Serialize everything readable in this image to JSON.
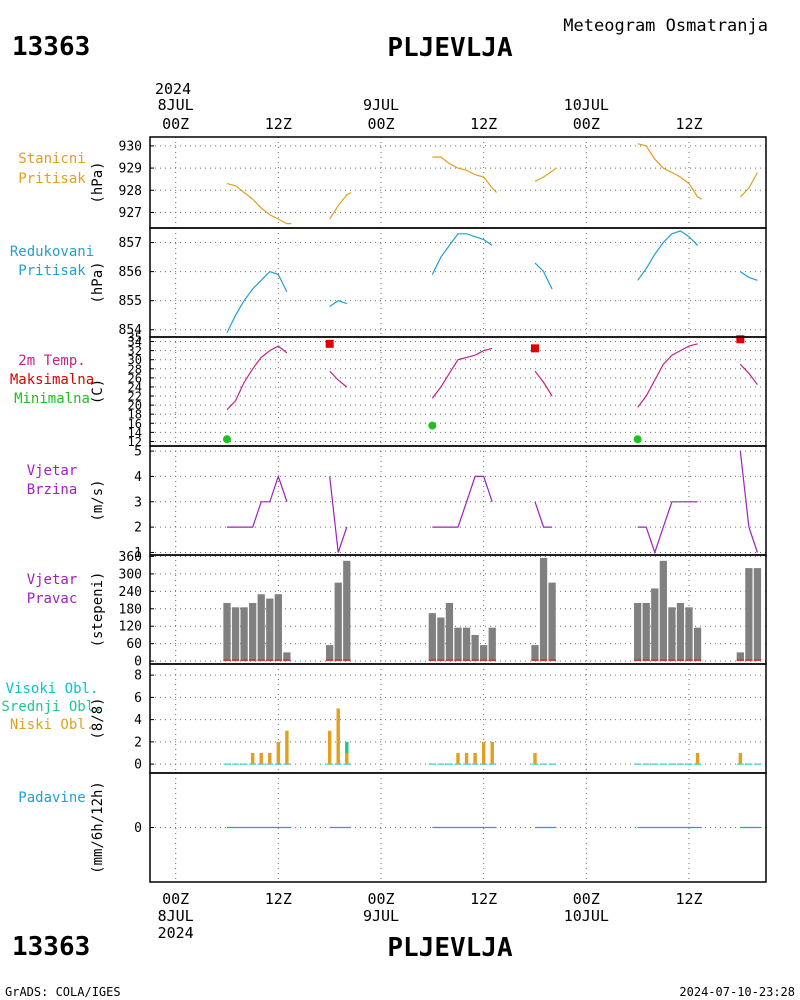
{
  "header": {
    "station_id": "13363",
    "station_name": "PLJEVLJA",
    "subtitle": "Meteogram  Osmatranja",
    "year": "2024"
  },
  "footer": {
    "credit": "GrADS: COLA/IGES",
    "timestamp": "2024-07-10-23:28"
  },
  "time_axis": {
    "top_row1": [
      "8JUL",
      "9JUL",
      "10JUL"
    ],
    "top_row2": [
      "00Z",
      "12Z",
      "00Z",
      "12Z",
      "00Z",
      "12Z"
    ],
    "bottom_row1": [
      "00Z",
      "12Z",
      "00Z",
      "12Z",
      "00Z",
      "12Z"
    ],
    "bottom_row2": [
      "8JUL",
      "9JUL",
      "10JUL"
    ],
    "bottom_row3": "2024"
  },
  "colors": {
    "pressure": "#e0a020",
    "reduced_pressure": "#20a0d0",
    "temperature": "#c8208a",
    "max_marker": "#e00000",
    "min_marker": "#20c020",
    "wind": "#a020c0",
    "wind_dir_bar": "#808080",
    "wind_dir_base": "#e03030",
    "high_cloud": "#00c8c8",
    "mid_cloud": "#20c890",
    "low_cloud": "#e0a020",
    "precip": "#20a0d0"
  },
  "panels": {
    "station_pressure": {
      "label1": "Stanicni",
      "label2": "Pritisak",
      "unit": "(hPa)",
      "ticks": [
        "927",
        "928",
        "929",
        "930"
      ]
    },
    "reduced_pressure": {
      "label1": "Redukovani",
      "label2": "Pritisak",
      "unit": "(hPa)",
      "ticks": [
        "854",
        "855",
        "856",
        "857"
      ]
    },
    "temperature": {
      "label1": "2m Temp.",
      "label2": "Maksimalna",
      "label3": "Minimalna",
      "unit": "(C)",
      "ticks": [
        "12",
        "14",
        "16",
        "18",
        "20",
        "22",
        "24",
        "26",
        "28",
        "30",
        "32",
        "34",
        "35"
      ]
    },
    "wind_speed": {
      "label1": "Vjetar",
      "label2": "Brzina",
      "unit": "(m/s)",
      "ticks": [
        "1",
        "2",
        "3",
        "4",
        "5"
      ]
    },
    "wind_direction": {
      "label1": "Vjetar",
      "label2": "Pravac",
      "unit": "(stepeni)",
      "ticks": [
        "0",
        "60",
        "120",
        "180",
        "240",
        "300",
        "360"
      ]
    },
    "clouds": {
      "label1": "Visoki Obl.",
      "label2": "Srednji Obl.",
      "label3": "Niski Obl.",
      "unit": "(8/8)",
      "ticks": [
        "0",
        "2",
        "4",
        "6",
        "8"
      ]
    },
    "precipitation": {
      "label1": "Padavine",
      "unit": "(mm/6h/12h)",
      "ticks": [
        "0"
      ]
    }
  },
  "chart_data": {
    "type": "line",
    "x_unit": "hours since 2024-07-08 00Z",
    "xlim": [
      -3,
      69
    ],
    "series_station_pressure": {
      "ylim": [
        926.3,
        930.4
      ],
      "segments": [
        [
          [
            6,
            928.3
          ],
          [
            7,
            928.2
          ],
          [
            8,
            927.9
          ],
          [
            9,
            927.6
          ],
          [
            10,
            927.2
          ],
          [
            11,
            926.9
          ],
          [
            12,
            926.7
          ],
          [
            13,
            926.5
          ],
          [
            13.5,
            926.5
          ]
        ],
        [
          [
            18,
            926.7
          ],
          [
            19,
            927.3
          ],
          [
            20,
            927.8
          ],
          [
            20.5,
            927.9
          ]
        ],
        [
          [
            30,
            929.5
          ],
          [
            31,
            929.5
          ],
          [
            32,
            929.2
          ],
          [
            33,
            929.0
          ],
          [
            34,
            928.9
          ],
          [
            35,
            928.7
          ],
          [
            36,
            928.6
          ],
          [
            37,
            928.1
          ],
          [
            37.5,
            927.9
          ]
        ],
        [
          [
            42,
            928.4
          ],
          [
            43,
            928.6
          ],
          [
            44.5,
            929.0
          ]
        ],
        [
          [
            54,
            930.1
          ],
          [
            55,
            930.0
          ],
          [
            56,
            929.4
          ],
          [
            57,
            929.0
          ],
          [
            58,
            928.8
          ],
          [
            59,
            928.6
          ],
          [
            60,
            928.3
          ],
          [
            61,
            927.7
          ],
          [
            61.5,
            927.6
          ]
        ],
        [
          [
            66,
            927.7
          ],
          [
            67,
            928.1
          ],
          [
            68,
            928.8
          ]
        ]
      ]
    },
    "series_reduced_pressure": {
      "ylim": [
        853.75,
        857.5
      ],
      "segments": [
        [
          [
            6,
            853.9
          ],
          [
            7,
            854.5
          ],
          [
            8,
            855.0
          ],
          [
            9,
            855.4
          ],
          [
            10,
            855.7
          ],
          [
            11,
            856.0
          ],
          [
            12,
            855.9
          ],
          [
            13,
            855.3
          ]
        ],
        [
          [
            18,
            854.8
          ],
          [
            19,
            855.0
          ],
          [
            20,
            854.9
          ]
        ],
        [
          [
            30,
            855.9
          ],
          [
            31,
            856.5
          ],
          [
            32,
            856.9
          ],
          [
            33,
            857.3
          ],
          [
            34,
            857.3
          ],
          [
            35,
            857.2
          ],
          [
            36,
            857.1
          ],
          [
            37,
            856.9
          ]
        ],
        [
          [
            42,
            856.3
          ],
          [
            43,
            856.0
          ],
          [
            44,
            855.4
          ]
        ],
        [
          [
            54,
            855.7
          ],
          [
            55,
            856.1
          ],
          [
            56,
            856.6
          ],
          [
            57,
            857.0
          ],
          [
            58,
            857.3
          ],
          [
            59,
            857.4
          ],
          [
            60,
            857.2
          ],
          [
            61,
            856.9
          ]
        ],
        [
          [
            66,
            856.0
          ],
          [
            67,
            855.8
          ],
          [
            68,
            855.7
          ]
        ]
      ]
    },
    "series_temperature": {
      "ylim": [
        11,
        35
      ],
      "segments": [
        [
          [
            6,
            19
          ],
          [
            7,
            21
          ],
          [
            8,
            25
          ],
          [
            9,
            28
          ],
          [
            10,
            30.5
          ],
          [
            11,
            32
          ],
          [
            12,
            33
          ],
          [
            13,
            31.5
          ]
        ],
        [
          [
            18,
            27.5
          ],
          [
            19,
            25.5
          ],
          [
            20,
            24
          ]
        ],
        [
          [
            30,
            21.5
          ],
          [
            31,
            24
          ],
          [
            32,
            27
          ],
          [
            33,
            30
          ],
          [
            34,
            30.5
          ],
          [
            35,
            31
          ],
          [
            36,
            32
          ],
          [
            37,
            32.5
          ]
        ],
        [
          [
            42,
            27.5
          ],
          [
            43,
            25
          ],
          [
            44,
            22
          ]
        ],
        [
          [
            54,
            19.5
          ],
          [
            55,
            22
          ],
          [
            56,
            25.5
          ],
          [
            57,
            29
          ],
          [
            58,
            31
          ],
          [
            59,
            32
          ],
          [
            60,
            33
          ],
          [
            61,
            33.5
          ]
        ],
        [
          [
            66,
            29
          ],
          [
            67,
            27
          ],
          [
            68,
            24.5
          ]
        ]
      ],
      "max_points": [
        [
          18,
          33.5
        ],
        [
          42,
          32.5
        ],
        [
          66,
          34.5
        ]
      ],
      "min_points": [
        [
          6,
          12.5
        ],
        [
          30,
          15.5
        ],
        [
          54,
          12.5
        ]
      ]
    },
    "series_wind_speed": {
      "ylim": [
        0.9,
        5.2
      ],
      "segments": [
        [
          [
            6,
            2
          ],
          [
            7,
            2
          ],
          [
            8,
            2
          ],
          [
            9,
            2
          ],
          [
            10,
            3
          ],
          [
            11,
            3
          ],
          [
            12,
            4
          ],
          [
            13,
            3
          ]
        ],
        [
          [
            18,
            4
          ],
          [
            19,
            1
          ],
          [
            20,
            2
          ]
        ],
        [
          [
            30,
            2
          ],
          [
            31,
            2
          ],
          [
            32,
            2
          ],
          [
            33,
            2
          ],
          [
            34,
            3
          ],
          [
            35,
            4
          ],
          [
            36,
            4
          ],
          [
            37,
            3
          ]
        ],
        [
          [
            42,
            3
          ],
          [
            43,
            2
          ],
          [
            44,
            2
          ]
        ],
        [
          [
            54,
            2
          ],
          [
            55,
            2
          ],
          [
            56,
            1
          ],
          [
            57,
            2
          ],
          [
            58,
            3
          ],
          [
            59,
            3
          ],
          [
            60,
            3
          ],
          [
            61,
            3
          ]
        ],
        [
          [
            66,
            5
          ],
          [
            67,
            2
          ],
          [
            68,
            1
          ]
        ]
      ]
    },
    "series_wind_direction": {
      "ylim": [
        -10,
        365
      ],
      "bars": [
        [
          6,
          200
        ],
        [
          7,
          185
        ],
        [
          8,
          185
        ],
        [
          9,
          200
        ],
        [
          10,
          230
        ],
        [
          11,
          215
        ],
        [
          12,
          230
        ],
        [
          13,
          30
        ],
        [
          18,
          55
        ],
        [
          19,
          270
        ],
        [
          20,
          345
        ],
        [
          30,
          165
        ],
        [
          31,
          150
        ],
        [
          32,
          200
        ],
        [
          33,
          115
        ],
        [
          34,
          115
        ],
        [
          35,
          90
        ],
        [
          36,
          55
        ],
        [
          37,
          115
        ],
        [
          42,
          55
        ],
        [
          43,
          355
        ],
        [
          44,
          270
        ],
        [
          54,
          200
        ],
        [
          55,
          200
        ],
        [
          56,
          250
        ],
        [
          57,
          345
        ],
        [
          58,
          185
        ],
        [
          59,
          200
        ],
        [
          60,
          185
        ],
        [
          61,
          115
        ],
        [
          66,
          30
        ],
        [
          67,
          320
        ],
        [
          68,
          320
        ]
      ]
    },
    "series_clouds": {
      "ylim": [
        -0.8,
        9
      ],
      "low_bars": [
        [
          6,
          0
        ],
        [
          7,
          0
        ],
        [
          8,
          0
        ],
        [
          9,
          1
        ],
        [
          10,
          1
        ],
        [
          11,
          1
        ],
        [
          12,
          2
        ],
        [
          13,
          3
        ],
        [
          18,
          3
        ],
        [
          19,
          5
        ],
        [
          20,
          1
        ],
        [
          30,
          0
        ],
        [
          31,
          0
        ],
        [
          32,
          0
        ],
        [
          33,
          1
        ],
        [
          34,
          1
        ],
        [
          35,
          1
        ],
        [
          36,
          2
        ],
        [
          37,
          2
        ],
        [
          42,
          1
        ],
        [
          43,
          0
        ],
        [
          44,
          0
        ],
        [
          54,
          0
        ],
        [
          55,
          0
        ],
        [
          56,
          0
        ],
        [
          57,
          0
        ],
        [
          58,
          0
        ],
        [
          59,
          0
        ],
        [
          60,
          0
        ],
        [
          61,
          1
        ],
        [
          66,
          1
        ],
        [
          67,
          0
        ],
        [
          68,
          0
        ]
      ],
      "mid_bars": [
        [
          20,
          1
        ]
      ]
    },
    "series_precipitation": {
      "ylim": [
        -1,
        1
      ],
      "segments": [
        [
          [
            6,
            0
          ],
          [
            13.5,
            0
          ]
        ],
        [
          [
            18,
            0
          ],
          [
            20.5,
            0
          ]
        ],
        [
          [
            30,
            0
          ],
          [
            37.5,
            0
          ]
        ],
        [
          [
            42,
            0
          ],
          [
            44.5,
            0
          ]
        ],
        [
          [
            54,
            0
          ],
          [
            61.5,
            0
          ]
        ],
        [
          [
            66,
            0
          ],
          [
            68.5,
            0
          ]
        ]
      ]
    }
  }
}
